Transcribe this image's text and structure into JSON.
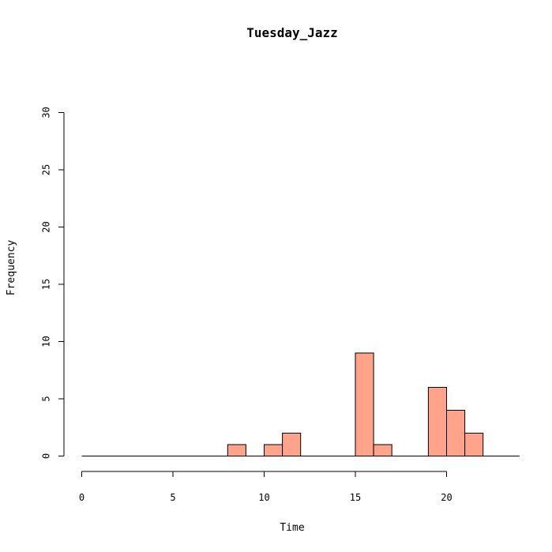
{
  "chart_data": {
    "type": "bar",
    "title": "Tuesday_Jazz",
    "xlabel": "Time",
    "ylabel": "Frequency",
    "xlim": [
      0,
      24
    ],
    "ylim": [
      0,
      30
    ],
    "x_ticks": [
      "0",
      "5",
      "10",
      "15",
      "20"
    ],
    "y_ticks": [
      "0",
      "5",
      "10",
      "15",
      "20",
      "25",
      "30"
    ],
    "bar_color": "#FFA38A",
    "bins": [
      {
        "start": 0,
        "end": 1,
        "count": 0
      },
      {
        "start": 1,
        "end": 2,
        "count": 0
      },
      {
        "start": 2,
        "end": 3,
        "count": 0
      },
      {
        "start": 3,
        "end": 4,
        "count": 0
      },
      {
        "start": 4,
        "end": 5,
        "count": 0
      },
      {
        "start": 5,
        "end": 6,
        "count": 0
      },
      {
        "start": 6,
        "end": 7,
        "count": 0
      },
      {
        "start": 7,
        "end": 8,
        "count": 0
      },
      {
        "start": 8,
        "end": 9,
        "count": 1
      },
      {
        "start": 9,
        "end": 10,
        "count": 0
      },
      {
        "start": 10,
        "end": 11,
        "count": 1
      },
      {
        "start": 11,
        "end": 12,
        "count": 2
      },
      {
        "start": 12,
        "end": 13,
        "count": 0
      },
      {
        "start": 13,
        "end": 14,
        "count": 0
      },
      {
        "start": 14,
        "end": 15,
        "count": 0
      },
      {
        "start": 15,
        "end": 16,
        "count": 9
      },
      {
        "start": 16,
        "end": 17,
        "count": 1
      },
      {
        "start": 17,
        "end": 18,
        "count": 0
      },
      {
        "start": 18,
        "end": 19,
        "count": 0
      },
      {
        "start": 19,
        "end": 20,
        "count": 6
      },
      {
        "start": 20,
        "end": 21,
        "count": 4
      },
      {
        "start": 21,
        "end": 22,
        "count": 2
      }
    ]
  }
}
